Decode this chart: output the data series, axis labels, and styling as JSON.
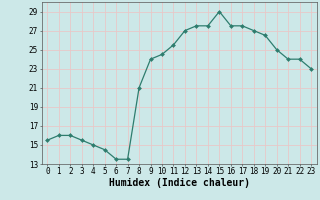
{
  "x": [
    0,
    1,
    2,
    3,
    4,
    5,
    6,
    7,
    8,
    9,
    10,
    11,
    12,
    13,
    14,
    15,
    16,
    17,
    18,
    19,
    20,
    21,
    22,
    23
  ],
  "y": [
    15.5,
    16.0,
    16.0,
    15.5,
    15.0,
    14.5,
    13.5,
    13.5,
    21.0,
    24.0,
    24.5,
    25.5,
    27.0,
    27.5,
    27.5,
    29.0,
    27.5,
    27.5,
    27.0,
    26.5,
    25.0,
    24.0,
    24.0,
    23.0
  ],
  "line_color": "#2e7d6e",
  "marker": "D",
  "marker_size": 2.0,
  "bg_color": "#cce8e8",
  "grid_color": "#e8c8c8",
  "xlabel": "Humidex (Indice chaleur)",
  "ylim": [
    13,
    30
  ],
  "xlim": [
    -0.5,
    23.5
  ],
  "yticks": [
    13,
    15,
    17,
    19,
    21,
    23,
    25,
    27,
    29
  ],
  "xticks": [
    0,
    1,
    2,
    3,
    4,
    5,
    6,
    7,
    8,
    9,
    10,
    11,
    12,
    13,
    14,
    15,
    16,
    17,
    18,
    19,
    20,
    21,
    22,
    23
  ],
  "xtick_labels": [
    "0",
    "1",
    "2",
    "3",
    "4",
    "5",
    "6",
    "7",
    "8",
    "9",
    "10",
    "11",
    "12",
    "13",
    "14",
    "15",
    "16",
    "17",
    "18",
    "19",
    "20",
    "21",
    "22",
    "23"
  ],
  "tick_fontsize": 5.5,
  "xlabel_fontsize": 7.0,
  "linewidth": 0.9
}
